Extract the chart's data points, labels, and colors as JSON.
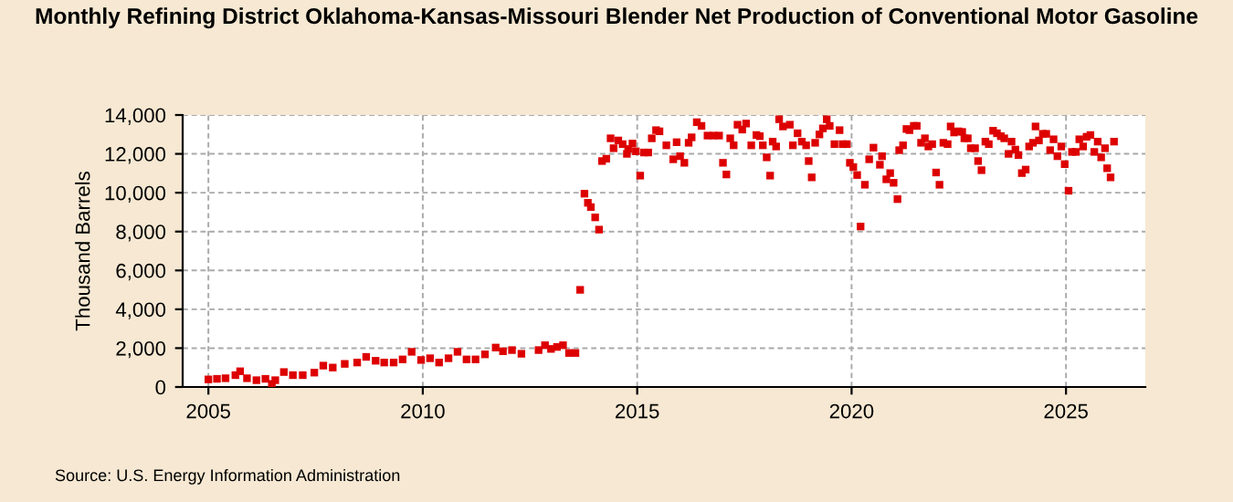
{
  "chart_data": {
    "type": "scatter",
    "title": "Monthly Refining District Oklahoma-Kansas-Missouri Blender Net Production of Conventional Motor Gasoline",
    "ylabel": "Thousand Barrels",
    "annotations": [
      "Source: U.S. Energy Information Administration"
    ],
    "xlim": [
      2004.4,
      2026.85
    ],
    "ylim": [
      0,
      14000
    ],
    "xticks": [
      2005,
      2010,
      2015,
      2020,
      2025
    ],
    "yticks": [
      {
        "value": 0,
        "label": "0"
      },
      {
        "value": 2000,
        "label": "2,000"
      },
      {
        "value": 4000,
        "label": "4,000"
      },
      {
        "value": 6000,
        "label": "6,000"
      },
      {
        "value": 8000,
        "label": "8,000"
      },
      {
        "value": 10000,
        "label": "10,000"
      },
      {
        "value": 12000,
        "label": "12,000"
      },
      {
        "value": 14000,
        "label": "14,000"
      }
    ],
    "grid": true,
    "marker": "square",
    "series": [
      {
        "color": "#dd0000",
        "x": [
          2005.0,
          2005.2,
          2005.4,
          2005.63,
          2005.74,
          2005.9,
          2006.12,
          2006.33,
          2006.48,
          2006.56,
          2006.76,
          2006.97,
          2007.2,
          2007.47,
          2007.68,
          2007.9,
          2008.18,
          2008.47,
          2008.68,
          2008.9,
          2009.1,
          2009.32,
          2009.53,
          2009.74,
          2009.96,
          2010.17,
          2010.38,
          2010.6,
          2010.81,
          2011.02,
          2011.23,
          2011.45,
          2011.7,
          2011.87,
          2012.08,
          2012.3,
          2012.7,
          2012.85,
          2012.99,
          2013.13,
          2013.27,
          2013.41,
          2013.56,
          2013.67,
          2013.77,
          2013.85,
          2013.92,
          2014.02,
          2014.11,
          2014.18,
          2014.28,
          2014.38,
          2014.45,
          2014.56,
          2014.66,
          2014.76,
          2014.79,
          2014.89,
          2014.97,
          2015.07,
          2015.16,
          2015.26,
          2015.34,
          2015.44,
          2015.52,
          2015.68,
          2015.84,
          2015.92,
          2016.0,
          2016.1,
          2016.2,
          2016.27,
          2016.39,
          2016.5,
          2016.64,
          2016.78,
          2016.91,
          2017.0,
          2017.08,
          2017.17,
          2017.25,
          2017.34,
          2017.45,
          2017.54,
          2017.66,
          2017.78,
          2017.86,
          2017.93,
          2018.02,
          2018.1,
          2018.16,
          2018.24,
          2018.31,
          2018.4,
          2018.56,
          2018.63,
          2018.74,
          2018.84,
          2018.94,
          2019.0,
          2019.07,
          2019.15,
          2019.25,
          2019.33,
          2019.42,
          2019.49,
          2019.6,
          2019.72,
          2019.79,
          2019.89,
          2019.96,
          2020.04,
          2020.13,
          2020.21,
          2020.31,
          2020.41,
          2020.51,
          2020.66,
          2020.71,
          2020.81,
          2020.9,
          2020.98,
          2021.07,
          2021.11,
          2021.2,
          2021.28,
          2021.35,
          2021.45,
          2021.52,
          2021.62,
          2021.71,
          2021.79,
          2021.88,
          2021.97,
          2022.05,
          2022.14,
          2022.24,
          2022.31,
          2022.39,
          2022.49,
          2022.58,
          2022.63,
          2022.71,
          2022.78,
          2022.88,
          2022.95,
          2023.03,
          2023.12,
          2023.2,
          2023.3,
          2023.39,
          2023.48,
          2023.56,
          2023.66,
          2023.73,
          2023.82,
          2023.89,
          2023.97,
          2024.06,
          2024.14,
          2024.23,
          2024.29,
          2024.37,
          2024.46,
          2024.54,
          2024.63,
          2024.71,
          2024.8,
          2024.89,
          2024.97,
          2025.06,
          2025.14,
          2025.23,
          2025.31,
          2025.4,
          2025.48,
          2025.57,
          2025.66,
          2025.74,
          2025.82,
          2025.91,
          2025.96,
          2026.04,
          2026.12
        ],
        "values": [
          390,
          420,
          450,
          610,
          810,
          450,
          350,
          420,
          160,
          350,
          770,
          610,
          610,
          740,
          1100,
          1000,
          1190,
          1260,
          1550,
          1350,
          1260,
          1260,
          1420,
          1810,
          1390,
          1480,
          1260,
          1480,
          1810,
          1420,
          1420,
          1680,
          2030,
          1840,
          1900,
          1710,
          1900,
          2150,
          1960,
          2060,
          2150,
          1750,
          1750,
          5000,
          9950,
          9480,
          9260,
          8730,
          8100,
          11630,
          11750,
          12800,
          12290,
          12690,
          12500,
          12000,
          12250,
          12530,
          12130,
          10880,
          12070,
          12070,
          12800,
          13220,
          13160,
          12440,
          11720,
          12600,
          11880,
          11540,
          12570,
          12850,
          13630,
          13440,
          12940,
          12940,
          12940,
          11540,
          10940,
          12800,
          12440,
          13500,
          13250,
          13560,
          12440,
          12970,
          12910,
          12440,
          11820,
          10880,
          12630,
          12380,
          13780,
          13410,
          13500,
          12440,
          13060,
          12630,
          12440,
          11630,
          10790,
          12570,
          13000,
          13310,
          13780,
          13440,
          12500,
          13220,
          12500,
          12500,
          11540,
          11320,
          10910,
          8260,
          10410,
          11720,
          12320,
          11440,
          11880,
          10690,
          11010,
          10510,
          9670,
          12190,
          12440,
          13280,
          13220,
          13440,
          13440,
          12570,
          12800,
          12380,
          12500,
          11040,
          10410,
          12570,
          12500,
          13410,
          13100,
          13160,
          13130,
          12800,
          12800,
          12290,
          12290,
          11630,
          11160,
          12630,
          12500,
          13190,
          13060,
          12910,
          12800,
          12000,
          12630,
          12220,
          11940,
          11010,
          11190,
          12380,
          12570,
          13410,
          12690,
          13030,
          13030,
          12190,
          12750,
          11880,
          12380,
          11470,
          10100,
          12100,
          12100,
          12750,
          12380,
          12880,
          12970,
          12100,
          12630,
          11820,
          12290,
          11260,
          10790,
          12630
        ]
      }
    ]
  }
}
